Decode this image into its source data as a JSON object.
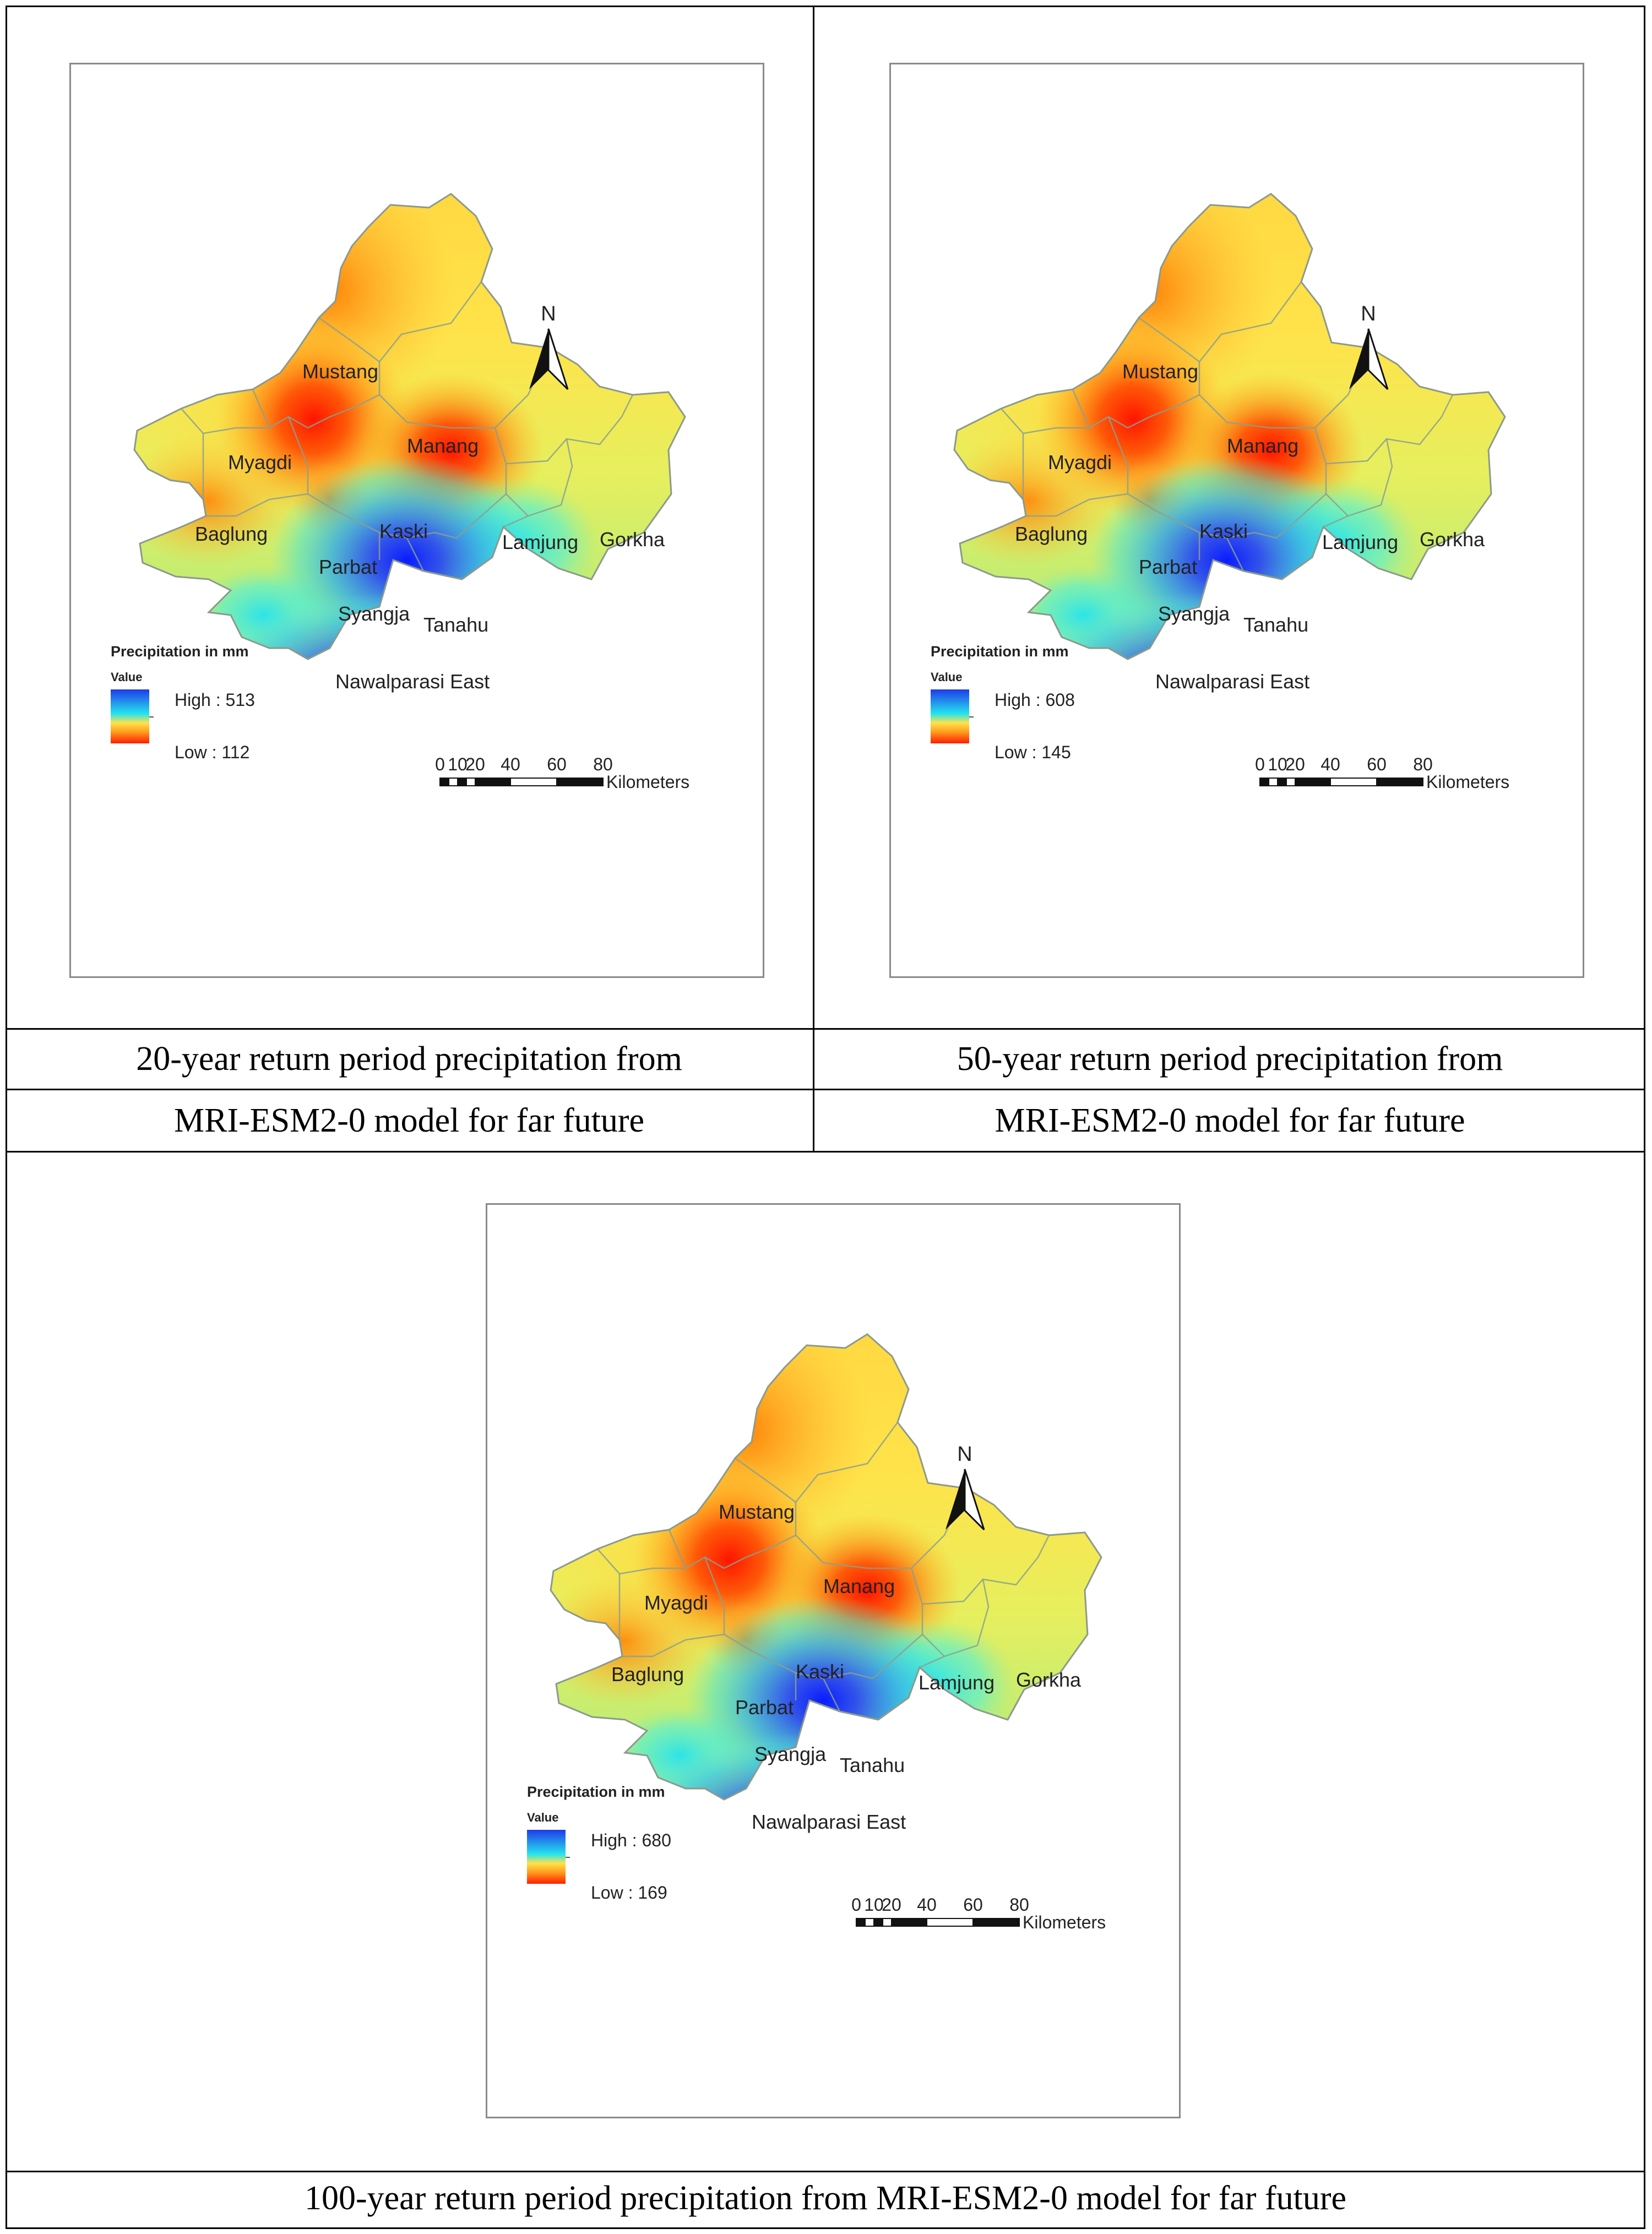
{
  "map_data": {
    "districts": [
      "Mustang",
      "Manang",
      "Myagdi",
      "Baglung",
      "Kaski",
      "Lamjung",
      "Gorkha",
      "Parbat",
      "Syangja",
      "Tanahu",
      "Nawalparasi East"
    ],
    "legend_title": "Precipitation in mm",
    "legend_subtitle": "Value",
    "north_label": "N",
    "scale": {
      "ticks": [
        "0",
        "10",
        "20",
        "40",
        "60",
        "80"
      ],
      "unit": "Kilometers"
    },
    "colors": {
      "high": "#1f3bea",
      "mid": "#25e3ee",
      "low": "#ff1e00",
      "orange": "#ffa020",
      "yellow": "#ffe34a"
    },
    "panels": [
      {
        "id": "p20",
        "return_period_years": 20,
        "high_label": "High : 513",
        "low_label": "Low : 112",
        "caption_line1": "20-year return period precipitation from",
        "caption_line2": "MRI-ESM2-0 model for far future"
      },
      {
        "id": "p50",
        "return_period_years": 50,
        "high_label": "High : 608",
        "low_label": "Low : 145",
        "caption_line1": "50-year return period precipitation from",
        "caption_line2": "MRI-ESM2-0 model for far future"
      },
      {
        "id": "p100",
        "return_period_years": 100,
        "high_label": "High : 680",
        "low_label": "Low : 169",
        "caption": "100-year return period precipitation from MRI-ESM2-0 model for far future"
      }
    ]
  }
}
